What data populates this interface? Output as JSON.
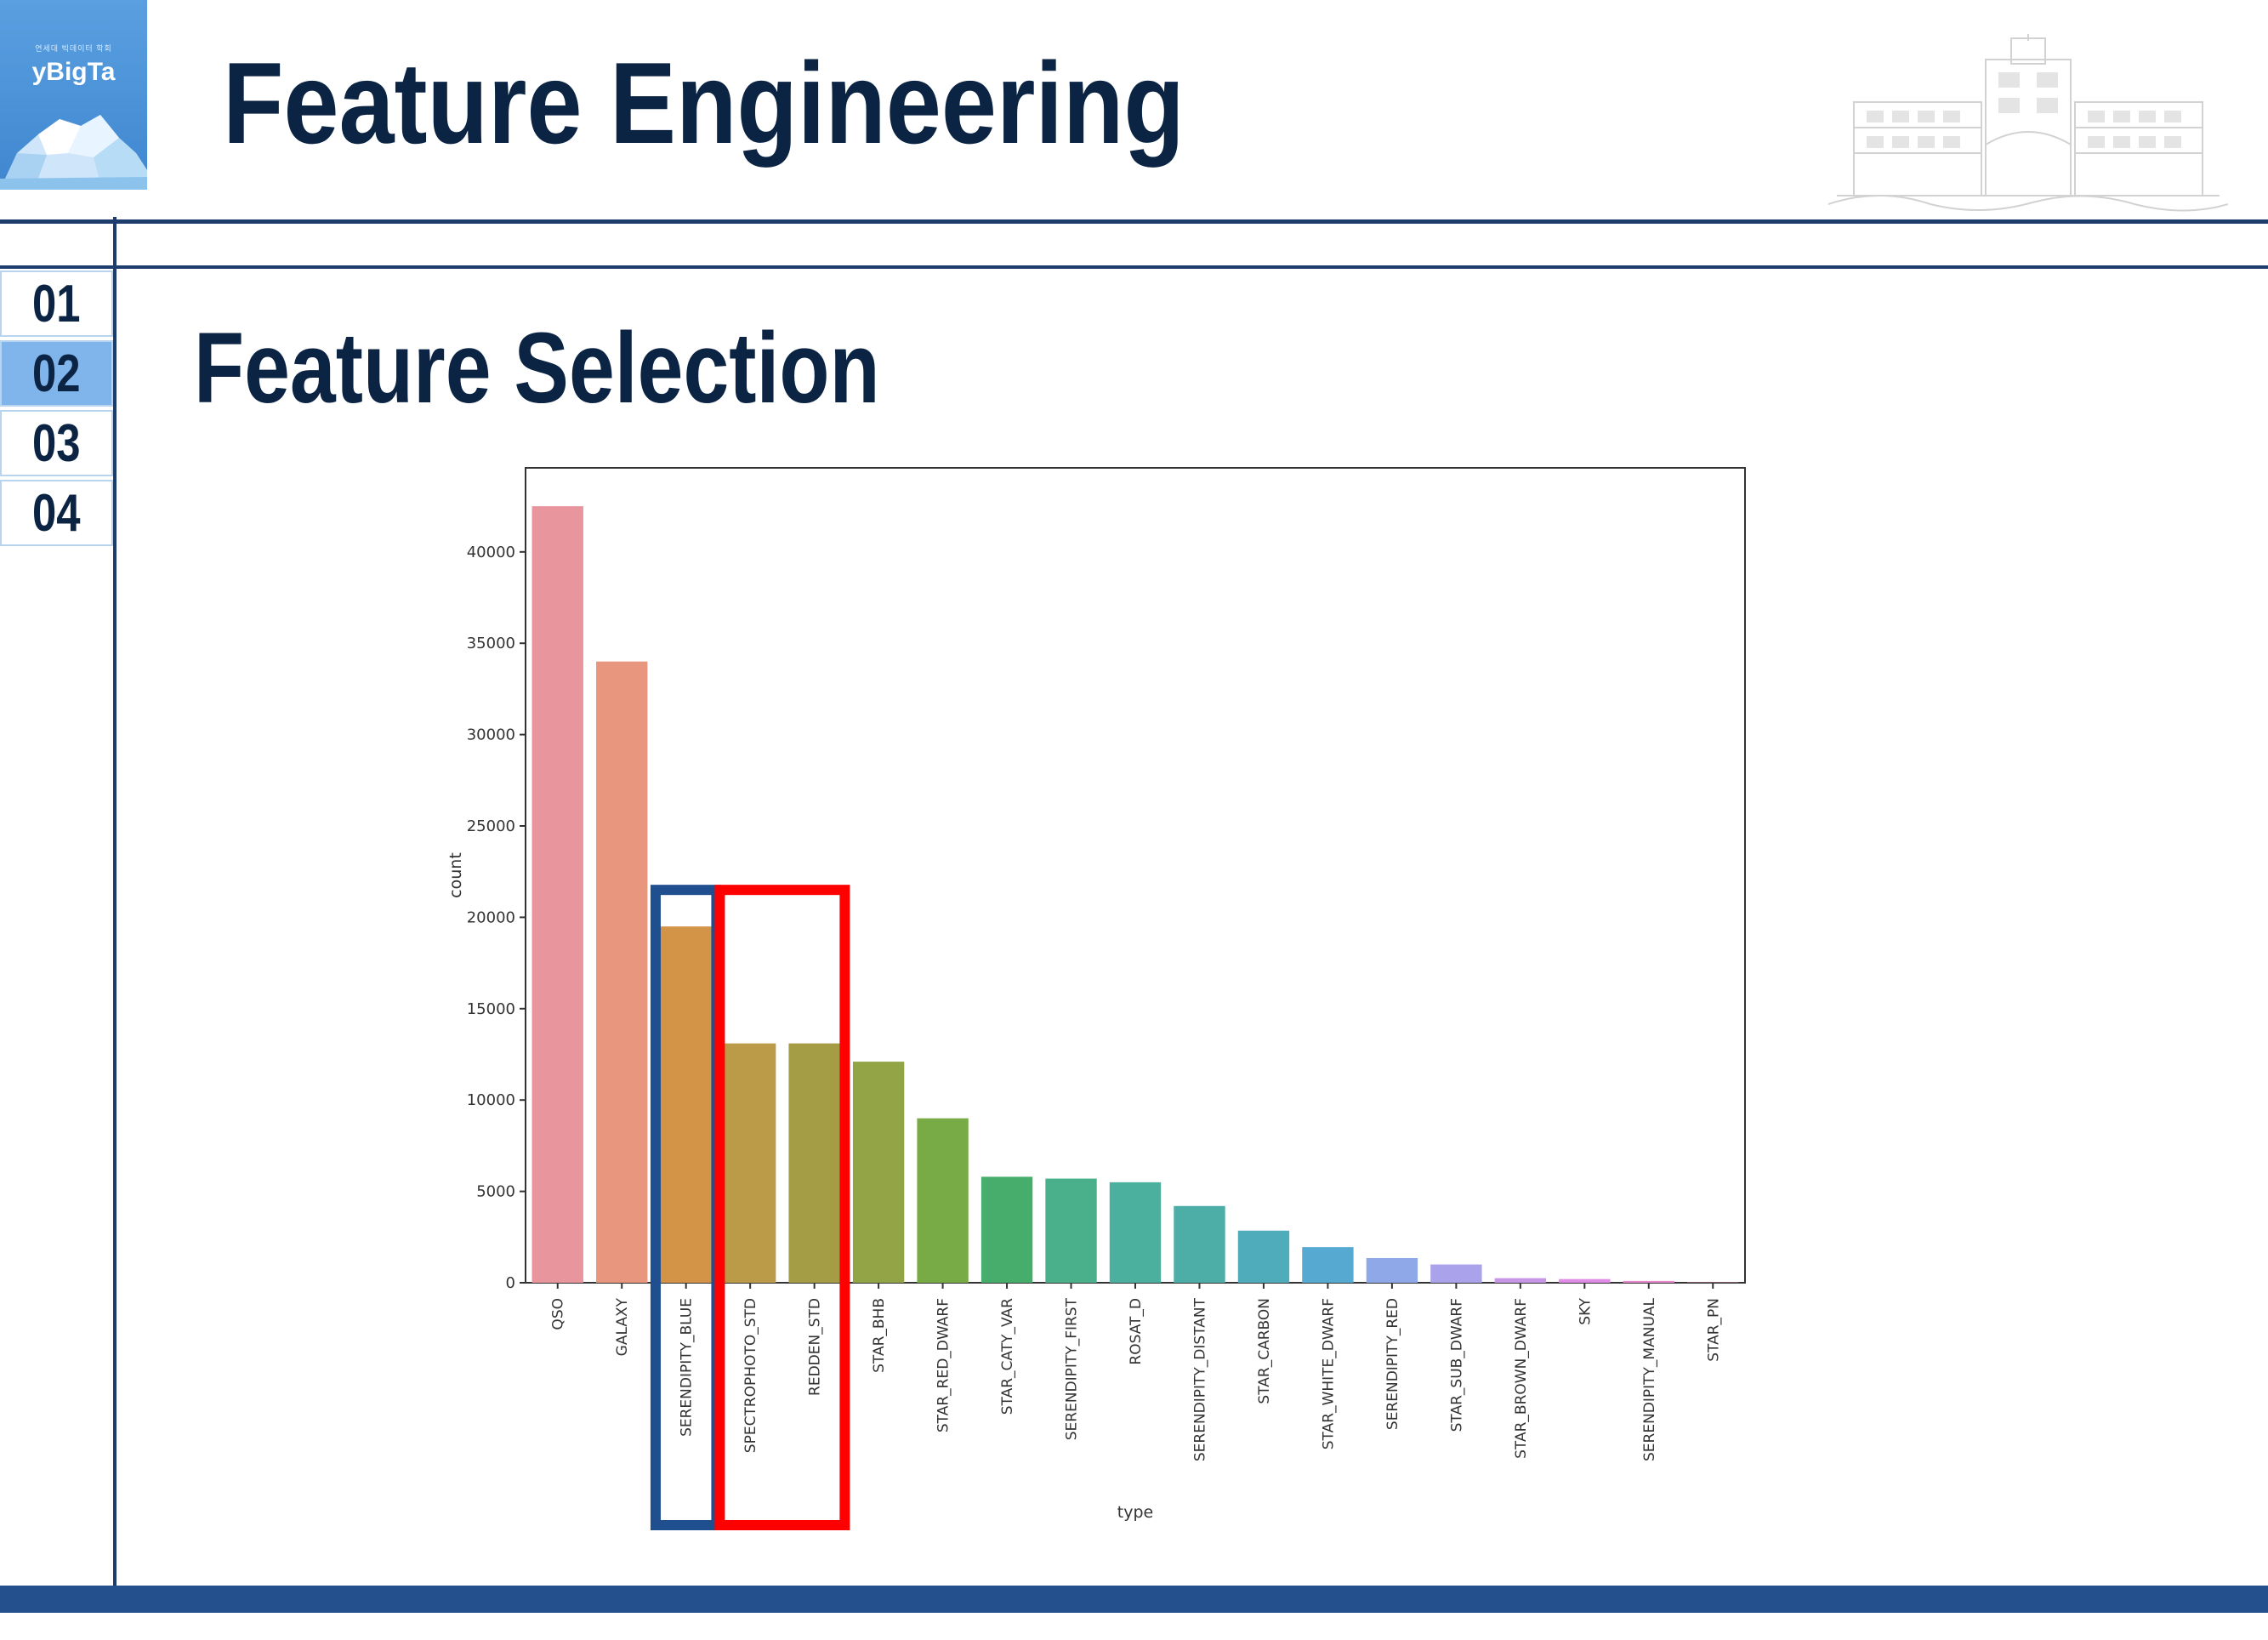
{
  "logo": {
    "wordmark": "yBigTa",
    "tiny_text": "연세대 빅데이터 학회"
  },
  "header": {
    "title": "Feature Engineering"
  },
  "nav": {
    "items": [
      {
        "label": "01",
        "active": false
      },
      {
        "label": "02",
        "active": true
      },
      {
        "label": "03",
        "active": false
      },
      {
        "label": "04",
        "active": false
      }
    ]
  },
  "section": {
    "title": "Feature Selection"
  },
  "colors": {
    "navy": "#0c2444",
    "line": "#1d3d6e",
    "footer": "#24508e",
    "nav_active": "#7fb5ea",
    "highlight_blue": "#1f4f8f",
    "highlight_red": "#ff0000"
  },
  "chart_data": {
    "type": "bar",
    "xlabel": "type",
    "ylabel": "count",
    "ylim": [
      0,
      44600
    ],
    "yticks": [
      0,
      5000,
      10000,
      15000,
      20000,
      25000,
      30000,
      35000,
      40000
    ],
    "grid": false,
    "categories": [
      "QSO",
      "GALAXY",
      "SERENDIPITY_BLUE",
      "SPECTROPHOTO_STD",
      "REDDEN_STD",
      "STAR_BHB",
      "STAR_RED_DWARF",
      "STAR_CATY_VAR",
      "SERENDIPITY_FIRST",
      "ROSAT_D",
      "SERENDIPITY_DISTANT",
      "STAR_CARBON",
      "STAR_WHITE_DWARF",
      "SERENDIPITY_RED",
      "STAR_SUB_DWARF",
      "STAR_BROWN_DWARF",
      "SKY",
      "SERENDIPITY_MANUAL",
      "STAR_PN"
    ],
    "values": [
      42500,
      34000,
      19500,
      13100,
      13100,
      12100,
      9000,
      5800,
      5700,
      5500,
      4200,
      2850,
      1950,
      1350,
      1000,
      250,
      200,
      100,
      20
    ],
    "colors": [
      "#e8959e",
      "#e8977e",
      "#d49448",
      "#bb9a48",
      "#a59c46",
      "#93a447",
      "#78ab46",
      "#46ad6c",
      "#4ab08c",
      "#4cb09e",
      "#4daea8",
      "#4fadbb",
      "#56aad2",
      "#8ea8e8",
      "#aaa2ea",
      "#c896e6",
      "#e08be6",
      "#e88ad0",
      "#ea8fb8"
    ],
    "highlights": [
      {
        "color": "#1f4f8f",
        "categories": [
          "SERENDIPITY_BLUE"
        ]
      },
      {
        "color": "#ff0000",
        "categories": [
          "SPECTROPHOTO_STD",
          "REDDEN_STD"
        ]
      }
    ]
  }
}
